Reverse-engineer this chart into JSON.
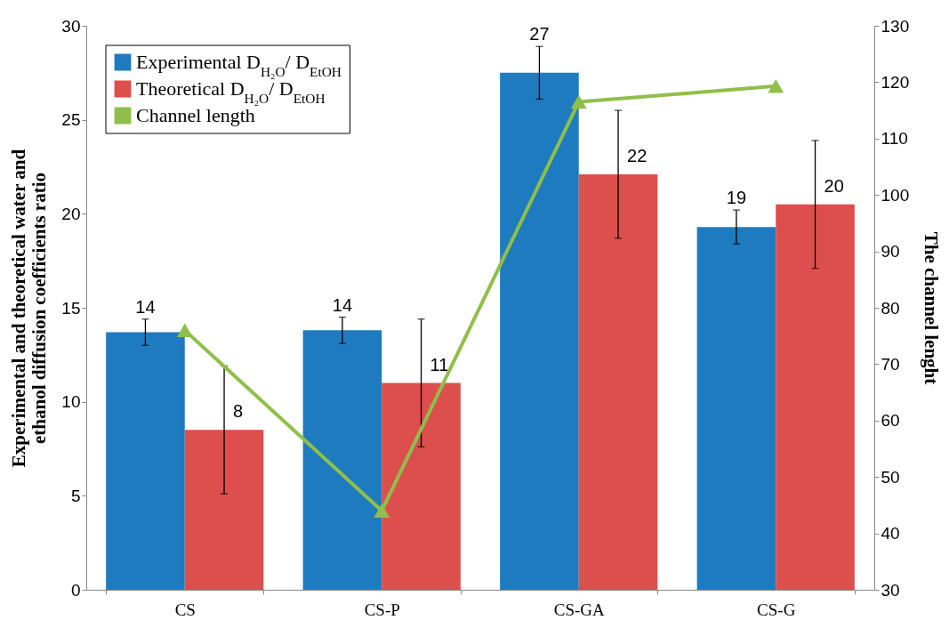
{
  "chart_data": {
    "type": "bar",
    "categories": [
      "CS",
      "CS-P",
      "CS-GA",
      "CS-G"
    ],
    "ylabel": "Experimental and theoretical water and\nethanol diffusion coefficients ratio",
    "y2label": "The channel lenght",
    "ylim": [
      0,
      30
    ],
    "yticks": [
      0,
      5,
      10,
      15,
      20,
      25,
      30
    ],
    "y2lim": [
      30,
      130
    ],
    "y2ticks": [
      30,
      40,
      50,
      60,
      70,
      80,
      90,
      100,
      110,
      120,
      130
    ],
    "legend": "top left",
    "grid": false,
    "marker": "triangle",
    "series": [
      {
        "name": "Experimental D$_{H₂O}$/ D$_{EtOH}$",
        "color": "#1f7bbf",
        "values": [
          13.7,
          13.8,
          27.5,
          19.3
        ],
        "errors": [
          0.7,
          0.7,
          1.4,
          0.9
        ],
        "value_labels": [
          "14",
          "14",
          "27",
          "19"
        ]
      },
      {
        "name": "Theoretical D$_{H₂O}$/ D$_{EtOH}$",
        "color": "#dc4f4c",
        "values": [
          8.5,
          11.0,
          22.1,
          20.5
        ],
        "errors": [
          3.4,
          3.4,
          3.4,
          3.4
        ],
        "value_labels": [
          "8",
          "11",
          "22",
          "20"
        ]
      },
      {
        "name": "Channel length",
        "type": "line",
        "axis": "y2",
        "color": "#8fbf4a",
        "values": [
          76,
          44,
          116.5,
          119.3
        ]
      }
    ]
  }
}
